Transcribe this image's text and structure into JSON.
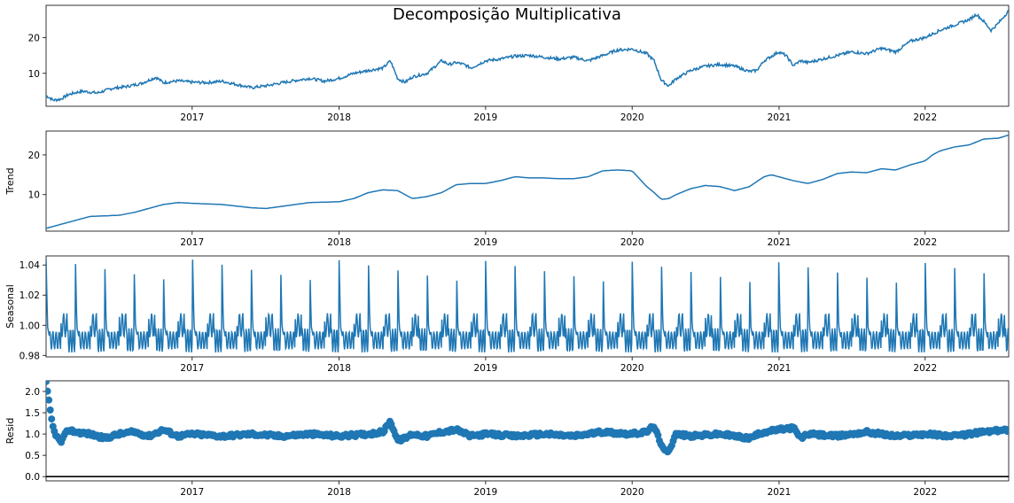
{
  "figure_title": "Decomposição Multiplicativa",
  "colors": {
    "line": "#1f77b4",
    "axis": "#000000",
    "zero_line": "#000000"
  },
  "chart_data": [
    {
      "type": "line",
      "name": "observed",
      "ylabel": "",
      "xlim": [
        2016.0,
        2022.57
      ],
      "ylim": [
        0.8,
        29.0
      ],
      "yticks": [
        10,
        20
      ],
      "xticks": [
        "2017",
        "2018",
        "2019",
        "2020",
        "2021",
        "2022"
      ],
      "grid": false,
      "series": [
        {
          "x": [
            2016.0,
            2016.05,
            2016.1,
            2016.15,
            2016.2,
            2016.25,
            2016.35,
            2016.45,
            2016.55,
            2016.65,
            2016.75,
            2016.8,
            2016.9,
            2017.0,
            2017.1,
            2017.2,
            2017.3,
            2017.4,
            2017.5,
            2017.6,
            2017.7,
            2017.8,
            2017.9,
            2018.0,
            2018.1,
            2018.2,
            2018.3,
            2018.35,
            2018.4,
            2018.45,
            2018.5,
            2018.6,
            2018.7,
            2018.75,
            2018.8,
            2018.85,
            2018.9,
            2019.0,
            2019.1,
            2019.2,
            2019.3,
            2019.4,
            2019.5,
            2019.6,
            2019.7,
            2019.8,
            2019.9,
            2020.0,
            2020.1,
            2020.15,
            2020.2,
            2020.25,
            2020.3,
            2020.4,
            2020.5,
            2020.6,
            2020.7,
            2020.8,
            2020.85,
            2020.9,
            2021.0,
            2021.05,
            2021.1,
            2021.15,
            2021.2,
            2021.3,
            2021.4,
            2021.5,
            2021.6,
            2021.7,
            2021.8,
            2021.9,
            2022.0,
            2022.05,
            2022.1,
            2022.2,
            2022.3,
            2022.35,
            2022.4,
            2022.45,
            2022.5,
            2022.57
          ],
          "values": [
            3.8,
            2.5,
            2.8,
            4.0,
            4.6,
            5.0,
            4.5,
            5.8,
            6.3,
            7.2,
            8.9,
            7.4,
            7.9,
            7.5,
            7.4,
            7.8,
            6.9,
            6.0,
            6.5,
            7.3,
            8.0,
            8.6,
            7.8,
            8.6,
            10.0,
            10.8,
            11.5,
            13.5,
            8.5,
            7.5,
            9.0,
            10.0,
            13.5,
            12.5,
            13.0,
            12.5,
            11.5,
            13.5,
            14.0,
            14.8,
            15.0,
            14.5,
            14.0,
            14.5,
            13.5,
            15.0,
            16.5,
            16.8,
            15.5,
            13.5,
            8.0,
            6.5,
            8.5,
            10.8,
            12.0,
            12.5,
            12.0,
            10.5,
            10.8,
            13.5,
            16.0,
            15.0,
            12.2,
            13.5,
            13.0,
            14.0,
            15.0,
            16.0,
            15.5,
            17.0,
            16.0,
            19.0,
            20.0,
            21.0,
            22.0,
            23.5,
            25.0,
            26.5,
            24.5,
            22.0,
            24.0,
            27.5
          ]
        }
      ]
    },
    {
      "type": "line",
      "name": "trend",
      "ylabel": "Trend",
      "xlim": [
        2016.0,
        2022.57
      ],
      "ylim": [
        0.8,
        26.0
      ],
      "yticks": [
        10,
        20
      ],
      "xticks": [
        "2017",
        "2018",
        "2019",
        "2020",
        "2021",
        "2022"
      ],
      "grid": false,
      "series": [
        {
          "x": [
            2016.0,
            2016.1,
            2016.2,
            2016.3,
            2016.5,
            2016.6,
            2016.7,
            2016.8,
            2016.9,
            2017.0,
            2017.2,
            2017.4,
            2017.5,
            2017.6,
            2017.8,
            2018.0,
            2018.1,
            2018.2,
            2018.3,
            2018.4,
            2018.5,
            2018.6,
            2018.7,
            2018.8,
            2018.9,
            2019.0,
            2019.1,
            2019.2,
            2019.3,
            2019.4,
            2019.5,
            2019.6,
            2019.7,
            2019.8,
            2019.9,
            2020.0,
            2020.1,
            2020.15,
            2020.2,
            2020.25,
            2020.3,
            2020.4,
            2020.5,
            2020.6,
            2020.7,
            2020.8,
            2020.9,
            2020.95,
            2021.0,
            2021.1,
            2021.2,
            2021.3,
            2021.4,
            2021.5,
            2021.6,
            2021.7,
            2021.8,
            2021.9,
            2022.0,
            2022.05,
            2022.1,
            2022.2,
            2022.3,
            2022.4,
            2022.5,
            2022.57
          ],
          "values": [
            1.5,
            2.5,
            3.5,
            4.5,
            4.8,
            5.5,
            6.5,
            7.5,
            8.0,
            7.8,
            7.5,
            6.7,
            6.5,
            7.0,
            8.0,
            8.2,
            9.0,
            10.5,
            11.2,
            11.0,
            9.0,
            9.5,
            10.5,
            12.5,
            12.8,
            12.8,
            13.5,
            14.5,
            14.2,
            14.2,
            14.0,
            14.0,
            14.5,
            16.0,
            16.2,
            16.0,
            12.0,
            10.5,
            8.8,
            9.0,
            10.0,
            11.5,
            12.3,
            12.0,
            11.0,
            12.0,
            14.5,
            15.0,
            14.5,
            13.5,
            12.8,
            13.8,
            15.3,
            15.7,
            15.5,
            16.5,
            16.2,
            17.5,
            18.5,
            20.0,
            21.0,
            22.0,
            22.5,
            24.0,
            24.2,
            25.0
          ]
        }
      ]
    },
    {
      "type": "line",
      "name": "seasonal",
      "ylabel": "Seasonal",
      "xlim": [
        2016.0,
        2022.57
      ],
      "ylim": [
        0.979,
        1.046
      ],
      "yticks": [
        0.98,
        1.0,
        1.02,
        1.04
      ],
      "ytick_labels": [
        "0.98",
        "1.00",
        "1.02",
        "1.04"
      ],
      "xticks": [
        "2017",
        "2018",
        "2019",
        "2020",
        "2021",
        "2022"
      ],
      "grid": false,
      "period_years": 0.2
    },
    {
      "type": "scatter",
      "name": "resid",
      "ylabel": "Resid",
      "xlim": [
        2016.0,
        2022.57
      ],
      "ylim": [
        -0.1,
        2.25
      ],
      "yticks": [
        0.0,
        0.5,
        1.0,
        1.5,
        2.0
      ],
      "ytick_labels": [
        "0.0",
        "0.5",
        "1.0",
        "1.5",
        "2.0"
      ],
      "xticks": [
        "2017",
        "2018",
        "2019",
        "2020",
        "2021",
        "2022"
      ],
      "grid": false,
      "hline": 0.0,
      "series": [
        {
          "x": [
            2016.0,
            2016.03,
            2016.05,
            2016.08,
            2016.1,
            2016.15,
            2016.2,
            2016.3,
            2016.4,
            2016.5,
            2016.6,
            2016.7,
            2016.8,
            2016.9,
            2017.0,
            2017.2,
            2017.4,
            2017.6,
            2017.8,
            2018.0,
            2018.2,
            2018.3,
            2018.35,
            2018.4,
            2018.45,
            2018.5,
            2018.6,
            2018.7,
            2018.8,
            2018.9,
            2019.0,
            2019.2,
            2019.4,
            2019.6,
            2019.8,
            2020.0,
            2020.1,
            2020.15,
            2020.2,
            2020.25,
            2020.3,
            2020.4,
            2020.6,
            2020.8,
            2020.9,
            2021.0,
            2021.1,
            2021.15,
            2021.2,
            2021.4,
            2021.6,
            2021.8,
            2022.0,
            2022.2,
            2022.4,
            2022.57
          ],
          "values": [
            2.2,
            1.5,
            1.1,
            0.9,
            0.8,
            1.1,
            1.05,
            1.0,
            0.9,
            1.0,
            1.05,
            0.95,
            1.1,
            0.95,
            1.0,
            0.95,
            1.0,
            0.95,
            1.0,
            0.95,
            1.0,
            1.05,
            1.3,
            0.85,
            0.9,
            1.0,
            0.95,
            1.05,
            1.1,
            0.95,
            1.0,
            0.95,
            1.0,
            0.95,
            1.05,
            1.0,
            1.05,
            1.2,
            0.7,
            0.6,
            1.0,
            0.95,
            1.0,
            0.9,
            1.05,
            1.1,
            1.15,
            0.9,
            1.0,
            0.95,
            1.05,
            0.95,
            1.0,
            0.95,
            1.05,
            1.1
          ]
        }
      ]
    }
  ]
}
